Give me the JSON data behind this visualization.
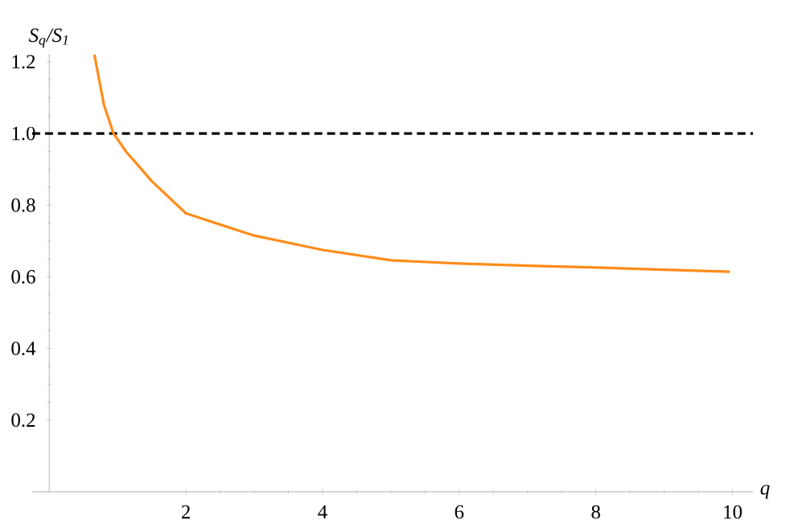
{
  "chart_data": {
    "type": "line",
    "xlabel": "q",
    "ylabel": "S$_{q}$/S$_{1}$",
    "x": [
      0.66,
      0.8,
      0.94,
      1.13,
      1.5,
      2,
      3,
      4,
      5,
      6,
      7,
      8,
      9,
      9.96
    ],
    "series": [
      {
        "color": "#ff8c1a",
        "values": [
          1.22,
          1.08,
          1.0,
          0.948,
          0.867,
          0.777,
          0.715,
          0.675,
          0.646,
          0.637,
          0.631,
          0.626,
          0.62,
          0.614
        ]
      }
    ],
    "xlim": [
      -0.25,
      10.3
    ],
    "ylim": [
      0,
      1.22
    ],
    "xticks": [
      2,
      4,
      6,
      8,
      10
    ],
    "yticks": [
      0.2,
      0.4,
      0.6,
      0.8,
      {
        "value": 1,
        "label": "1.0"
      },
      1.2
    ],
    "ref_lines": [
      {
        "axis": "y",
        "value": 1,
        "color": "#000000",
        "line_style": "dashed"
      }
    ]
  }
}
